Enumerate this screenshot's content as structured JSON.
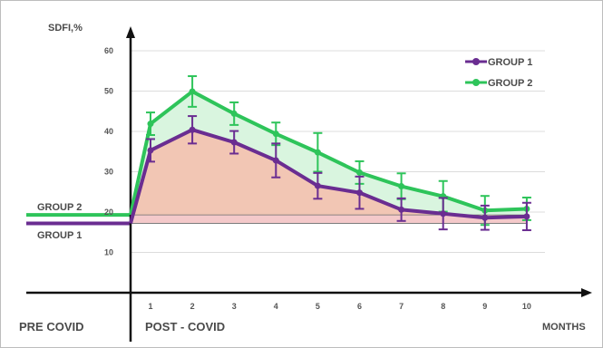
{
  "colors": {
    "group1": "#6a2d91",
    "group2": "#2ec45a",
    "fill_group1": "#f2c6b4",
    "fill_group2": "#d9f5df",
    "baseline_fill": "#f4c9cc",
    "grid": "#dcdcdc",
    "axis": "#111111"
  },
  "labels": {
    "ylabel": "SDFI,%",
    "xlabel": "MONTHS",
    "pre_covid": "PRE COVID",
    "post_covid": "POST - COVID",
    "baseline_group2": "GROUP 2",
    "baseline_group1": "GROUP 1"
  },
  "chart_data": {
    "type": "line",
    "title": "",
    "xlabel": "MONTHS",
    "ylabel": "SDFI,%",
    "x": [
      1,
      2,
      3,
      4,
      5,
      6,
      7,
      8,
      9,
      10
    ],
    "yticks": [
      10,
      20,
      30,
      40,
      50,
      60
    ],
    "ylim": [
      -10,
      65
    ],
    "grid": true,
    "legend_position": "top-right",
    "baselines": {
      "GROUP 2": 19.3,
      "GROUP 1": 17.2
    },
    "series": [
      {
        "name": "GROUP 1",
        "color": "#6a2d91",
        "values": [
          35.3,
          40.4,
          37.3,
          32.8,
          26.5,
          24.8,
          20.6,
          19.6,
          18.6,
          18.9
        ],
        "errors": [
          2.8,
          3.4,
          2.8,
          4.2,
          3.2,
          4.0,
          2.8,
          3.9,
          3.0,
          3.4
        ]
      },
      {
        "name": "GROUP 2",
        "color": "#2ec45a",
        "values": [
          41.9,
          49.9,
          44.4,
          39.4,
          34.8,
          29.8,
          26.4,
          23.9,
          20.4,
          20.8
        ],
        "errors": [
          2.8,
          3.8,
          2.8,
          2.8,
          4.8,
          2.8,
          3.2,
          3.8,
          3.6,
          2.8
        ]
      }
    ]
  }
}
